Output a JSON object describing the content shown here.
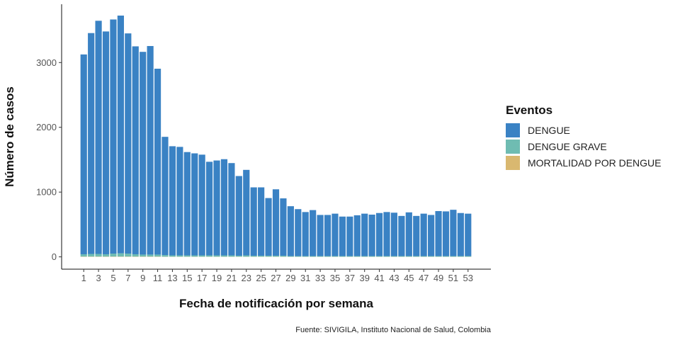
{
  "chart_data": {
    "type": "bar",
    "stacked": true,
    "xlabel": "Fecha de notificación por semana",
    "ylabel": "Número de casos",
    "caption": "Fuente: SIVIGILA, Instituto Nacional de Salud, Colombia",
    "legend_title": "Eventos",
    "legend_position": "right",
    "grid": false,
    "ylim": [
      -190,
      3900
    ],
    "yticks": [
      0,
      1000,
      2000,
      3000
    ],
    "ytick_labels": [
      "0",
      "1000",
      "2000",
      "3000"
    ],
    "xtick_labels": [
      "1",
      "3",
      "5",
      "7",
      "9",
      "11",
      "13",
      "15",
      "17",
      "19",
      "21",
      "23",
      "25",
      "27",
      "29",
      "31",
      "33",
      "35",
      "37",
      "39",
      "41",
      "43",
      "45",
      "47",
      "49",
      "51",
      "53"
    ],
    "categories": [
      1,
      2,
      3,
      4,
      5,
      6,
      7,
      8,
      9,
      10,
      11,
      12,
      13,
      14,
      15,
      16,
      17,
      18,
      19,
      20,
      21,
      22,
      23,
      24,
      25,
      26,
      27,
      28,
      29,
      30,
      31,
      32,
      33,
      34,
      35,
      36,
      37,
      38,
      39,
      40,
      41,
      42,
      43,
      44,
      45,
      46,
      47,
      48,
      49,
      50,
      51,
      52,
      53
    ],
    "series": [
      {
        "name": "DENGUE",
        "color": "#3a82c4",
        "values": [
          3085,
          3410,
          3600,
          3440,
          3615,
          3670,
          3400,
          3210,
          3130,
          3220,
          2870,
          1825,
          1685,
          1675,
          1595,
          1575,
          1555,
          1445,
          1465,
          1485,
          1425,
          1230,
          1320,
          1055,
          1055,
          890,
          1025,
          885,
          770,
          725,
          680,
          710,
          635,
          635,
          655,
          610,
          610,
          630,
          655,
          640,
          665,
          680,
          670,
          620,
          675,
          620,
          655,
          635,
          695,
          690,
          715,
          665,
          655
        ]
      },
      {
        "name": "DENGUE GRAVE",
        "color": "#6fbcb2",
        "values": [
          35,
          40,
          40,
          35,
          45,
          50,
          45,
          35,
          30,
          30,
          30,
          25,
          20,
          20,
          20,
          20,
          20,
          20,
          20,
          20,
          20,
          15,
          20,
          15,
          15,
          15,
          15,
          15,
          10,
          10,
          10,
          10,
          10,
          10,
          10,
          10,
          10,
          10,
          10,
          10,
          10,
          10,
          10,
          10,
          10,
          10,
          10,
          10,
          10,
          10,
          10,
          10,
          10
        ]
      },
      {
        "name": "MORTALIDAD POR DENGUE",
        "color": "#d9b870",
        "values": [
          5,
          5,
          5,
          5,
          5,
          5,
          5,
          5,
          5,
          5,
          5,
          3,
          3,
          3,
          3,
          3,
          3,
          3,
          3,
          3,
          3,
          3,
          3,
          3,
          3,
          3,
          3,
          3,
          2,
          2,
          2,
          2,
          2,
          2,
          2,
          2,
          2,
          2,
          2,
          2,
          2,
          2,
          2,
          2,
          2,
          2,
          2,
          2,
          2,
          2,
          2,
          2,
          2
        ]
      }
    ]
  }
}
